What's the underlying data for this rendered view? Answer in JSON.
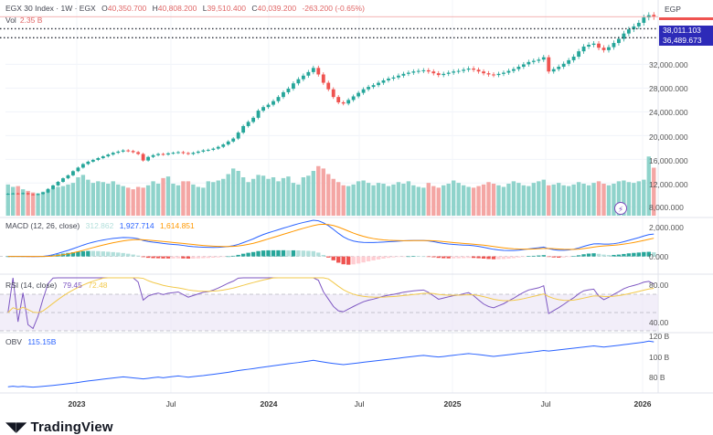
{
  "header": {
    "symbol": "EGX 30 Index · 1W · EGX",
    "open_label": "O",
    "open": "40,350.700",
    "high_label": "H",
    "high": "40,808.200",
    "low_label": "L",
    "low": "39,510.400",
    "close_label": "C",
    "close": "40,039.200",
    "change": "-263.200 (-0.65%)",
    "vol_label": "Vol",
    "vol": "2.35 B",
    "currency": "EGP"
  },
  "price_tags": [
    "38,011.103",
    "36,489.673"
  ],
  "price_axis": [
    "32,000.000",
    "28,000.000",
    "24,000.000",
    "20,000.000",
    "16,000.000",
    "12,000.000",
    "8,000.000"
  ],
  "macd": {
    "label": "MACD (12, 26, close)",
    "hist": "312.862",
    "macd": "1,927.714",
    "signal": "1,614.851",
    "axis": [
      "2,000.000",
      "0.000"
    ]
  },
  "rsi": {
    "label": "RSI (14, close)",
    "rsi": "79.45",
    "ma": "72.48",
    "axis": [
      "80.00",
      "40.00"
    ]
  },
  "obv": {
    "label": "OBV",
    "value": "115.15B",
    "axis": [
      "120 B",
      "100 B",
      "80 B"
    ]
  },
  "time_axis": [
    {
      "label": "2023",
      "bold": true
    },
    {
      "label": "Jul",
      "bold": false
    },
    {
      "label": "2024",
      "bold": true
    },
    {
      "label": "Jul",
      "bold": false
    },
    {
      "label": "2025",
      "bold": true
    },
    {
      "label": "Jul",
      "bold": false
    },
    {
      "label": "2026",
      "bold": true
    }
  ],
  "brand": "TradingView",
  "colors": {
    "up": "#26a69a",
    "down": "#ef5350",
    "vol_up": "#8fd3cb",
    "vol_down": "#f4a6a4",
    "macd_line": "#2962ff",
    "signal_line": "#ff9800",
    "rsi_line": "#7e57c2",
    "rsi_ma": "#f2c94c",
    "obv_line": "#2962ff",
    "price_tag": "#2d2ab8"
  },
  "chart_data": {
    "type": "candlestick",
    "title": "EGX 30 Index · 1W · EGX",
    "ylabel": "EGP",
    "ylim": [
      6500,
      41000
    ],
    "x_range": [
      "2022-10",
      "2026-01"
    ],
    "x_ticks": [
      "2023",
      "Jul",
      "2024",
      "Jul",
      "2025",
      "Jul",
      "2026"
    ],
    "y_ticks": [
      8000,
      12000,
      16000,
      20000,
      24000,
      28000,
      32000
    ],
    "horizontal_lines": [
      38011.103,
      36489.673
    ],
    "last": {
      "open": 40350.7,
      "high": 40808.2,
      "low": 39510.4,
      "close": 40039.2,
      "change": -263.2,
      "change_pct": -0.65,
      "volume": "2.35 B"
    },
    "close_series": [
      10200,
      10250,
      10180,
      10300,
      10100,
      10050,
      10150,
      10400,
      11000,
      11600,
      12200,
      12800,
      13300,
      14000,
      14600,
      15200,
      15600,
      15900,
      16200,
      16500,
      16800,
      17100,
      17300,
      17500,
      17400,
      17200,
      16900,
      15800,
      16400,
      16700,
      16900,
      16800,
      17000,
      17100,
      17200,
      17050,
      16900,
      17100,
      17300,
      17500,
      17600,
      17800,
      18100,
      18500,
      19000,
      19500,
      20500,
      21600,
      22300,
      23000,
      24200,
      24800,
      25200,
      25800,
      26500,
      27300,
      27900,
      28800,
      29500,
      30100,
      30700,
      31400,
      30300,
      28900,
      27800,
      26500,
      25600,
      25400,
      26000,
      26600,
      27200,
      27800,
      28200,
      28500,
      28900,
      29300,
      29600,
      29800,
      30100,
      30400,
      30600,
      30800,
      30900,
      31000,
      30800,
      30500,
      30200,
      30400,
      30600,
      30800,
      30900,
      31100,
      31300,
      31100,
      30800,
      30500,
      30300,
      30200,
      30400,
      30600,
      30900,
      31200,
      31600,
      32000,
      32400,
      32600,
      32800,
      33200,
      30800,
      31200,
      31600,
      32100,
      32700,
      33300,
      34200,
      35000,
      35300,
      35500,
      34800,
      34400,
      34900,
      35600,
      36300,
      37200,
      37900,
      38400,
      39000,
      39900,
      40300,
      40039
    ],
    "volume_series": [
      7.8,
      7.2,
      7.4,
      6.6,
      6.2,
      5.8,
      5.6,
      6.0,
      6.4,
      6.8,
      7.2,
      7.4,
      7.8,
      8.2,
      9.6,
      10.2,
      9.0,
      8.2,
      8.6,
      8.4,
      8.0,
      8.6,
      7.8,
      7.4,
      7.0,
      6.6,
      7.2,
      7.0,
      7.6,
      8.6,
      8.0,
      9.4,
      9.8,
      8.0,
      7.6,
      8.6,
      8.6,
      7.8,
      7.2,
      7.0,
      8.6,
      8.4,
      8.8,
      9.2,
      10.4,
      11.8,
      11.2,
      9.6,
      8.4,
      9.2,
      10.2,
      10.0,
      9.2,
      9.6,
      8.6,
      9.4,
      9.8,
      8.2,
      7.8,
      9.6,
      10.0,
      11.2,
      12.4,
      11.8,
      10.4,
      9.2,
      8.4,
      7.6,
      7.4,
      7.8,
      8.6,
      8.8,
      8.2,
      7.6,
      8.2,
      8.0,
      7.4,
      7.8,
      8.4,
      8.0,
      8.6,
      7.6,
      7.2,
      7.0,
      8.2,
      7.4,
      7.0,
      7.6,
      8.0,
      8.8,
      8.2,
      7.6,
      7.2,
      7.0,
      7.4,
      7.8,
      8.4,
      8.0,
      7.6,
      7.2,
      8.0,
      8.6,
      8.2,
      7.6,
      7.4,
      8.2,
      8.6,
      9.0,
      7.6,
      7.8,
      8.2,
      7.6,
      7.4,
      7.8,
      8.4,
      8.0,
      7.6,
      8.2,
      8.6,
      8.0,
      7.6,
      8.0,
      8.6,
      8.8,
      8.4,
      8.2,
      8.6,
      9.0,
      14.8,
      12.0
    ],
    "volume_unit": "relative",
    "indicators": [
      {
        "name": "MACD (12, 26, close)",
        "histogram": 312.862,
        "macd": 1927.714,
        "signal": 1614.851,
        "ylim": [
          -1500,
          3500
        ],
        "y_ticks": [
          0,
          2000
        ]
      },
      {
        "name": "RSI (14, close)",
        "rsi": 79.45,
        "ma": 72.48,
        "ylim": [
          30,
          90
        ],
        "y_ticks": [
          40,
          80
        ],
        "bands": [
          30,
          50,
          70
        ]
      },
      {
        "name": "OBV",
        "value": "115.15B",
        "ylim": [
          70,
          122
        ],
        "y_ticks": [
          80,
          100,
          120
        ],
        "unit": "B"
      }
    ]
  }
}
